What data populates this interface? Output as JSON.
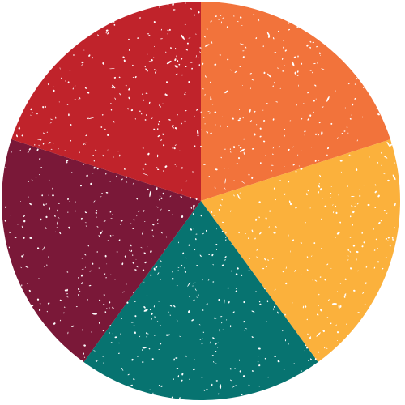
{
  "chart_data": {
    "type": "pie",
    "title": "",
    "legend": "none",
    "texture": "distressed-grunge",
    "start": "top",
    "direction": "clockwise",
    "slices": [
      {
        "value": 20,
        "color": "#F2733B"
      },
      {
        "value": 20,
        "color": "#FBB13C"
      },
      {
        "value": 20,
        "color": "#077370"
      },
      {
        "value": 20,
        "color": "#7A1838"
      },
      {
        "value": 20,
        "color": "#C0232B"
      }
    ]
  }
}
